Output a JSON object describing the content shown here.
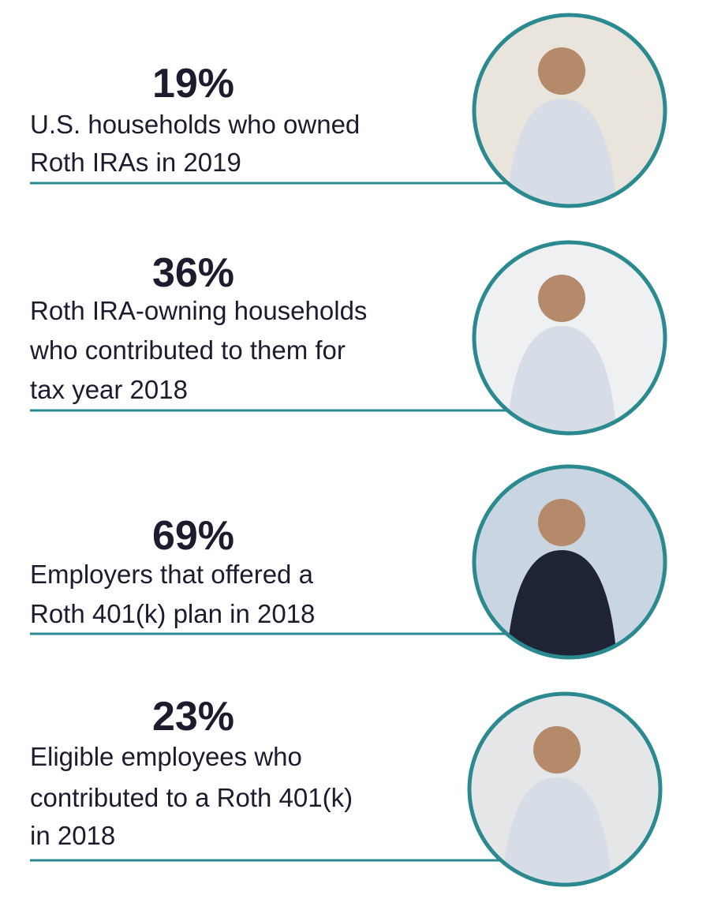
{
  "items": [
    {
      "stat": "19%",
      "lines": [
        "U.S. households who owned",
        "Roth IRAs in 2019"
      ]
    },
    {
      "stat": "36%",
      "lines": [
        "Roth IRA-owning households",
        "who contributed to them for",
        "tax year 2018"
      ]
    },
    {
      "stat": "69%",
      "lines": [
        "Employers that offered a",
        "Roth 401(k) plan in 2018"
      ]
    },
    {
      "stat": "23%",
      "lines": [
        "Eligible employees who",
        "contributed to a Roth 401(k)",
        "in 2018"
      ]
    }
  ]
}
